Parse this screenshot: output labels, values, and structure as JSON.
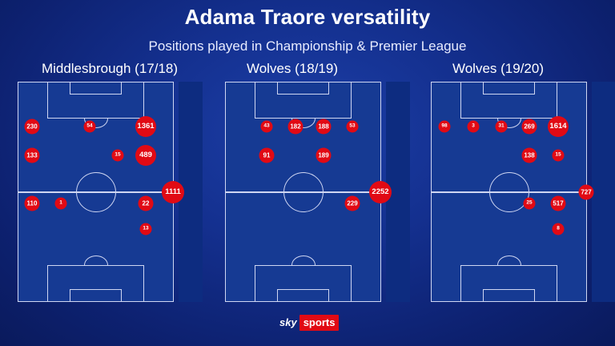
{
  "header": {
    "title": "Adama Traore versatility",
    "subtitle": "Positions played in Championship & Premier League"
  },
  "panels": [
    {
      "team": "Middlesbrough (17/18)",
      "dots": [
        {
          "value": "230",
          "size": "md"
        },
        {
          "value": "54",
          "size": "sm"
        },
        {
          "value": "1361",
          "size": "lg"
        },
        {
          "value": "133",
          "size": "md"
        },
        {
          "value": "15",
          "size": "sm"
        },
        {
          "value": "489",
          "size": "lg"
        },
        {
          "value": "110",
          "size": "md"
        },
        {
          "value": "1",
          "size": "sm"
        },
        {
          "value": "22",
          "size": "md"
        },
        {
          "value": "13",
          "size": "sm"
        }
      ],
      "bench": {
        "value": "1111",
        "size": "xl"
      }
    },
    {
      "team": "Wolves (18/19)",
      "dots": [
        {
          "value": "43",
          "size": "sm"
        },
        {
          "value": "182",
          "size": "md"
        },
        {
          "value": "188",
          "size": "md"
        },
        {
          "value": "53",
          "size": "sm"
        },
        {
          "value": "91",
          "size": "md"
        },
        {
          "value": "189",
          "size": "md"
        },
        {
          "value": "229",
          "size": "md"
        }
      ],
      "bench": {
        "value": "2252",
        "size": "xl"
      }
    },
    {
      "team": "Wolves (19/20)",
      "dots": [
        {
          "value": "98",
          "size": "sm"
        },
        {
          "value": "3",
          "size": "sm"
        },
        {
          "value": "31",
          "size": "sm"
        },
        {
          "value": "269",
          "size": "md"
        },
        {
          "value": "1614",
          "size": "lg"
        },
        {
          "value": "138",
          "size": "md"
        },
        {
          "value": "15",
          "size": "sm"
        },
        {
          "value": "25",
          "size": "sm"
        },
        {
          "value": "517",
          "size": "md"
        },
        {
          "value": "8",
          "size": "sm"
        }
      ],
      "bench": {
        "value": "727",
        "size": "md"
      }
    }
  ],
  "branding": {
    "sky": "sky",
    "sports": "sports"
  },
  "colors": {
    "background": "#14308f",
    "pitch": "#163a93",
    "dot": "#e10a14",
    "lines": "#cfd6f2"
  }
}
